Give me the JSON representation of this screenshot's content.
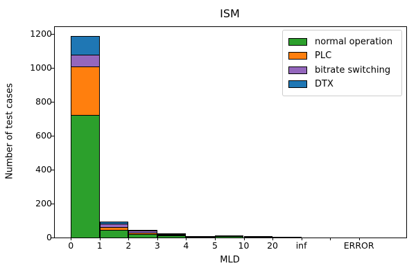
{
  "chart_data": {
    "type": "bar",
    "subtype": "stacked-histogram",
    "title": "ISM",
    "xlabel": "MLD",
    "ylabel": "Number of test cases",
    "x_tick_labels": [
      "0",
      "1",
      "2",
      "3",
      "4",
      "5",
      "10",
      "20",
      "inf",
      "",
      "ERROR"
    ],
    "bins": [
      "0-1",
      "1-2",
      "2-3",
      "3-4",
      "4-5",
      "5-10",
      "10-20",
      "20-inf",
      "ERROR"
    ],
    "series": [
      {
        "name": "normal operation",
        "color": "#2ca02c",
        "values": [
          725,
          46,
          22,
          12,
          4,
          7,
          4,
          2,
          0
        ]
      },
      {
        "name": "PLC",
        "color": "#ff7f0e",
        "values": [
          285,
          15,
          8,
          3,
          1,
          2,
          1,
          1,
          0
        ]
      },
      {
        "name": "bitrate switching",
        "color": "#9467bd",
        "values": [
          70,
          22,
          12,
          6,
          2,
          3,
          2,
          1,
          0
        ]
      },
      {
        "name": "DTX",
        "color": "#1f77b4",
        "values": [
          110,
          12,
          3,
          2,
          1,
          2,
          1,
          0,
          0
        ]
      }
    ],
    "totals": [
      1190,
      95,
      45,
      23,
      8,
      14,
      8,
      4,
      0
    ],
    "yticks": [
      0,
      200,
      400,
      600,
      800,
      1000,
      1200
    ],
    "ylim": [
      0,
      1242
    ],
    "grid": false,
    "legend_position": "upper right",
    "bar_edge_color": "#000000",
    "background_color": "#ffffff",
    "text_color": "#000000"
  }
}
